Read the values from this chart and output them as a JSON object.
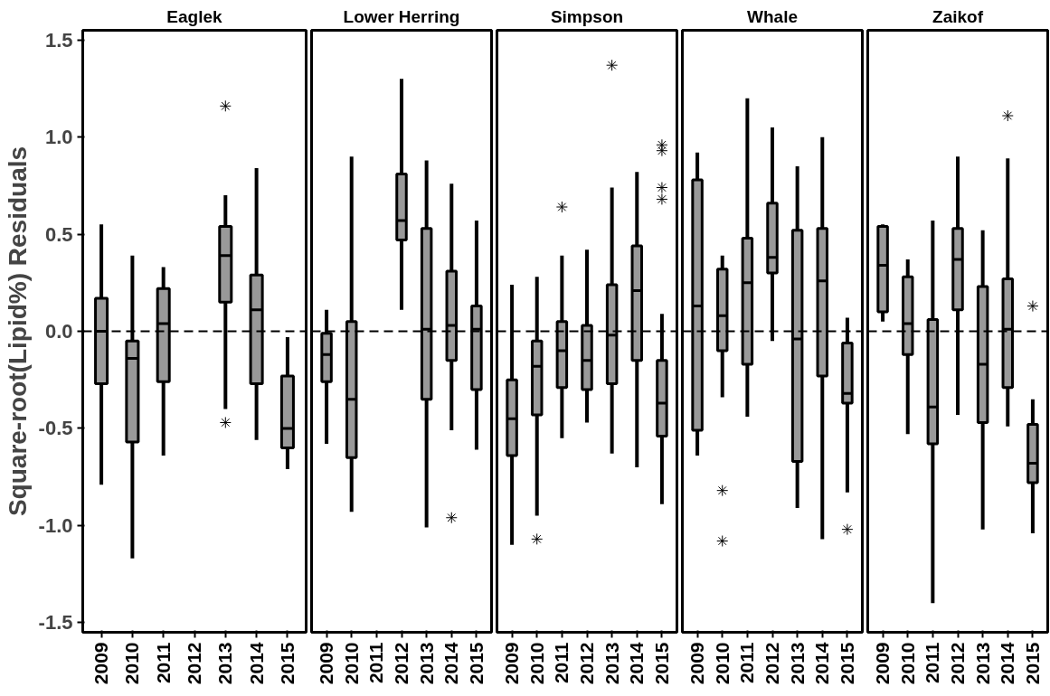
{
  "chart_data": [
    {
      "type": "box",
      "title": "Eaglek",
      "ylabel": "Square-root(Lipid%) Residuals",
      "categories": [
        "2009",
        "2010",
        "2011",
        "2012",
        "2013",
        "2014",
        "2015"
      ],
      "ylim": [
        -1.55,
        1.55
      ],
      "yticks": [
        {
          "value": -1.5,
          "label": "-1.5"
        },
        {
          "value": -1.0,
          "label": "-1.0"
        },
        {
          "value": -0.5,
          "label": "-0.5"
        },
        {
          "value": 0.0,
          "label": "0.0"
        },
        {
          "value": 0.5,
          "label": "0.5"
        },
        {
          "value": 1.0,
          "label": "1.0"
        },
        {
          "value": 1.5,
          "label": "1.5"
        }
      ],
      "grid": false,
      "marker": "star",
      "ref_lines": [
        {
          "axis": "y",
          "value": 0,
          "line_style": "dashed"
        }
      ],
      "series": [
        {
          "color": "#999999",
          "boxes": [
            {
              "low": -0.79,
              "q1": -0.27,
              "median": 0.0,
              "q3": 0.17,
              "high": 0.55
            },
            {
              "low": -1.17,
              "q1": -0.57,
              "median": -0.14,
              "q3": -0.05,
              "high": 0.39
            },
            {
              "low": -0.64,
              "q1": -0.26,
              "median": 0.04,
              "q3": 0.22,
              "high": 0.33
            },
            null,
            {
              "low": -0.4,
              "q1": 0.15,
              "median": 0.39,
              "q3": 0.54,
              "high": 0.7,
              "outliers": [
                1.16,
                -0.47
              ]
            },
            {
              "low": -0.56,
              "q1": -0.27,
              "median": 0.11,
              "q3": 0.29,
              "high": 0.84
            },
            {
              "low": -0.71,
              "q1": -0.6,
              "median": -0.5,
              "q3": -0.23,
              "high": -0.03
            }
          ]
        }
      ]
    },
    {
      "type": "box",
      "title": "Lower Herring",
      "categories": [
        "2009",
        "2010",
        "2011",
        "2012",
        "2013",
        "2014",
        "2015"
      ],
      "ylim": [
        -1.55,
        1.55
      ],
      "tick_labels": "x",
      "grid": false,
      "marker": "star",
      "ref_lines": [
        {
          "axis": "y",
          "value": 0,
          "line_style": "dashed"
        }
      ],
      "series": [
        {
          "color": "#999999",
          "boxes": [
            {
              "low": -0.58,
              "q1": -0.26,
              "median": -0.12,
              "q3": -0.01,
              "high": 0.11
            },
            {
              "low": -0.93,
              "q1": -0.65,
              "median": -0.35,
              "q3": 0.05,
              "high": 0.9
            },
            null,
            {
              "low": 0.11,
              "q1": 0.47,
              "median": 0.57,
              "q3": 0.81,
              "high": 1.3
            },
            {
              "low": -1.01,
              "q1": -0.35,
              "median": 0.01,
              "q3": 0.53,
              "high": 0.88
            },
            {
              "low": -0.51,
              "q1": -0.15,
              "median": 0.03,
              "q3": 0.31,
              "high": 0.76,
              "outliers": [
                -0.96
              ]
            },
            {
              "low": -0.61,
              "q1": -0.3,
              "median": 0.01,
              "q3": 0.13,
              "high": 0.57
            }
          ]
        }
      ]
    },
    {
      "type": "box",
      "title": "Simpson",
      "categories": [
        "2009",
        "2010",
        "2011",
        "2012",
        "2013",
        "2014",
        "2015"
      ],
      "ylim": [
        -1.55,
        1.55
      ],
      "tick_labels": "x",
      "grid": false,
      "marker": "star",
      "ref_lines": [
        {
          "axis": "y",
          "value": 0,
          "line_style": "dashed"
        }
      ],
      "series": [
        {
          "color": "#999999",
          "boxes": [
            {
              "low": -1.1,
              "q1": -0.64,
              "median": -0.45,
              "q3": -0.25,
              "high": 0.24
            },
            {
              "low": -0.95,
              "q1": -0.43,
              "median": -0.18,
              "q3": -0.05,
              "high": 0.28,
              "outliers": [
                -1.07
              ]
            },
            {
              "low": -0.55,
              "q1": -0.29,
              "median": -0.1,
              "q3": 0.05,
              "high": 0.39,
              "outliers": [
                0.64
              ]
            },
            {
              "low": -0.47,
              "q1": -0.3,
              "median": -0.15,
              "q3": 0.03,
              "high": 0.42
            },
            {
              "low": -0.63,
              "q1": -0.27,
              "median": -0.02,
              "q3": 0.24,
              "high": 0.74,
              "outliers": [
                1.37
              ]
            },
            {
              "low": -0.7,
              "q1": -0.15,
              "median": 0.21,
              "q3": 0.44,
              "high": 0.82
            },
            {
              "low": -0.89,
              "q1": -0.54,
              "median": -0.37,
              "q3": -0.15,
              "high": 0.09,
              "outliers": [
                0.96,
                0.93,
                0.74,
                0.68
              ]
            }
          ]
        }
      ]
    },
    {
      "type": "box",
      "title": "Whale",
      "categories": [
        "2009",
        "2010",
        "2011",
        "2012",
        "2013",
        "2014",
        "2015"
      ],
      "ylim": [
        -1.55,
        1.55
      ],
      "tick_labels": "x",
      "grid": false,
      "marker": "star",
      "ref_lines": [
        {
          "axis": "y",
          "value": 0,
          "line_style": "dashed"
        }
      ],
      "series": [
        {
          "color": "#999999",
          "boxes": [
            {
              "low": -0.64,
              "q1": -0.51,
              "median": 0.13,
              "q3": 0.78,
              "high": 0.92
            },
            {
              "low": -0.34,
              "q1": -0.1,
              "median": 0.08,
              "q3": 0.32,
              "high": 0.39,
              "outliers": [
                -0.82,
                -1.08
              ]
            },
            {
              "low": -0.44,
              "q1": -0.17,
              "median": 0.25,
              "q3": 0.48,
              "high": 1.2
            },
            {
              "low": -0.05,
              "q1": 0.3,
              "median": 0.38,
              "q3": 0.66,
              "high": 1.05
            },
            {
              "low": -0.91,
              "q1": -0.67,
              "median": -0.04,
              "q3": 0.52,
              "high": 0.85
            },
            {
              "low": -1.07,
              "q1": -0.23,
              "median": 0.26,
              "q3": 0.53,
              "high": 1.0
            },
            {
              "low": -0.83,
              "q1": -0.37,
              "median": -0.32,
              "q3": -0.06,
              "high": 0.07,
              "outliers": [
                -1.02
              ]
            }
          ]
        }
      ]
    },
    {
      "type": "box",
      "title": "Zaikof",
      "categories": [
        "2009",
        "2010",
        "2011",
        "2012",
        "2013",
        "2014",
        "2015"
      ],
      "ylim": [
        -1.55,
        1.55
      ],
      "tick_labels": "x",
      "grid": false,
      "marker": "star",
      "ref_lines": [
        {
          "axis": "y",
          "value": 0,
          "line_style": "dashed"
        }
      ],
      "series": [
        {
          "color": "#999999",
          "boxes": [
            {
              "low": 0.05,
              "q1": 0.1,
              "median": 0.34,
              "q3": 0.54,
              "high": 0.55
            },
            {
              "low": -0.53,
              "q1": -0.12,
              "median": 0.04,
              "q3": 0.28,
              "high": 0.37
            },
            {
              "low": -1.4,
              "q1": -0.58,
              "median": -0.39,
              "q3": 0.06,
              "high": 0.57
            },
            {
              "low": -0.43,
              "q1": 0.11,
              "median": 0.37,
              "q3": 0.53,
              "high": 0.9
            },
            {
              "low": -1.02,
              "q1": -0.47,
              "median": -0.17,
              "q3": 0.23,
              "high": 0.52
            },
            {
              "low": -0.49,
              "q1": -0.29,
              "median": 0.01,
              "q3": 0.27,
              "high": 0.89,
              "outliers": [
                1.11
              ]
            },
            {
              "low": -1.04,
              "q1": -0.78,
              "median": -0.68,
              "q3": -0.48,
              "high": -0.35,
              "outliers": [
                0.13
              ]
            }
          ]
        }
      ]
    }
  ]
}
